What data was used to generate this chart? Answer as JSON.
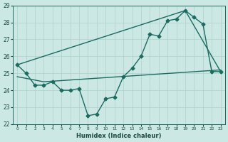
{
  "xlabel": "Humidex (Indice chaleur)",
  "xlim": [
    -0.5,
    23.5
  ],
  "ylim": [
    22,
    29
  ],
  "yticks": [
    22,
    23,
    24,
    25,
    26,
    27,
    28,
    29
  ],
  "xticks": [
    0,
    1,
    2,
    3,
    4,
    5,
    6,
    7,
    8,
    9,
    10,
    11,
    12,
    13,
    14,
    15,
    16,
    17,
    18,
    19,
    20,
    21,
    22,
    23
  ],
  "background_color": "#cce8e4",
  "grid_color": "#aed0cc",
  "line_color": "#1a6b60",
  "line1_x": [
    0,
    1,
    2,
    3,
    4,
    5,
    6,
    7,
    8,
    9,
    10,
    11,
    12,
    13,
    14,
    15,
    16,
    17,
    18,
    19,
    20,
    21,
    22,
    23
  ],
  "line1_y": [
    25.5,
    25.0,
    24.3,
    24.3,
    24.5,
    24.0,
    24.0,
    24.1,
    22.5,
    22.6,
    23.5,
    23.6,
    24.8,
    25.3,
    26.0,
    27.3,
    27.2,
    28.1,
    28.2,
    28.7,
    28.3,
    27.9,
    25.1,
    25.1
  ],
  "line2_x": [
    0,
    19,
    23
  ],
  "line2_y": [
    25.5,
    28.7,
    25.1
  ],
  "line3_x": [
    0,
    3,
    23
  ],
  "line3_y": [
    24.8,
    24.5,
    25.2
  ],
  "markersize": 2.5,
  "linewidth": 1.0
}
